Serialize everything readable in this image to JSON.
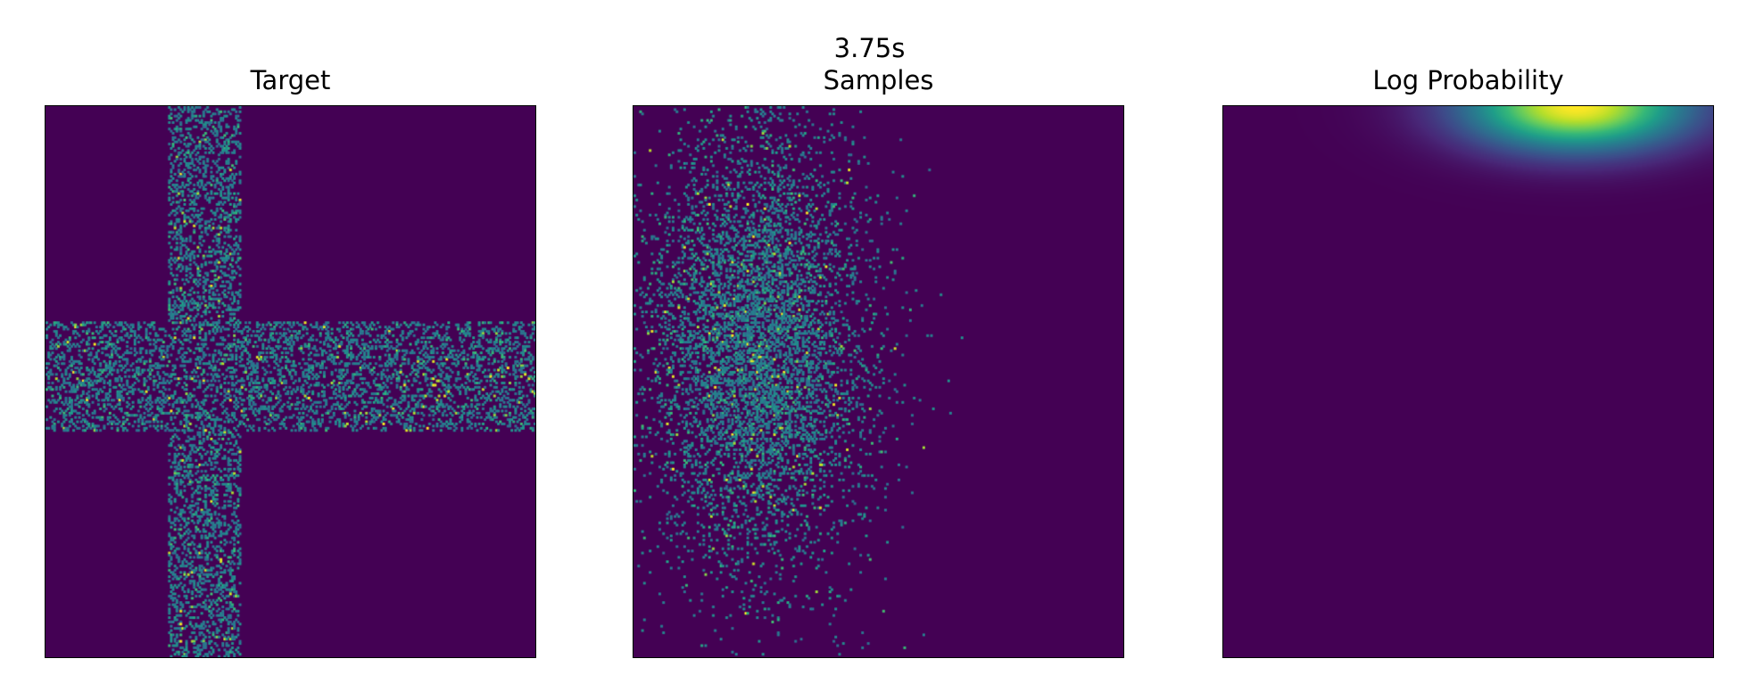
{
  "chart_data": {
    "type": "heatmap",
    "title": "3.75s",
    "colormap": "viridis",
    "colors": {
      "background": "#440154",
      "frame": "#000000"
    },
    "axes_ticks": "none",
    "panels": [
      {
        "title": "Target",
        "description_data": {
          "distribution": "cross",
          "vertical_band": {
            "x_range": [
              0.25,
              0.4
            ],
            "y_range": [
              0.0,
              1.0
            ]
          },
          "horizontal_band": {
            "x_range": [
              0.0,
              1.0
            ],
            "y_range": [
              0.39,
              0.59
            ]
          }
        }
      },
      {
        "title": "Samples",
        "description_data": {
          "distribution": "gaussian-blob",
          "center": [
            0.25,
            0.43
          ],
          "spread": [
            0.12,
            0.22
          ]
        }
      },
      {
        "title": "Log Probability",
        "description_data": {
          "distribution": "peak-at-top-edge",
          "center": [
            0.72,
            0.0
          ],
          "spread": [
            0.2,
            0.07
          ]
        }
      }
    ]
  }
}
